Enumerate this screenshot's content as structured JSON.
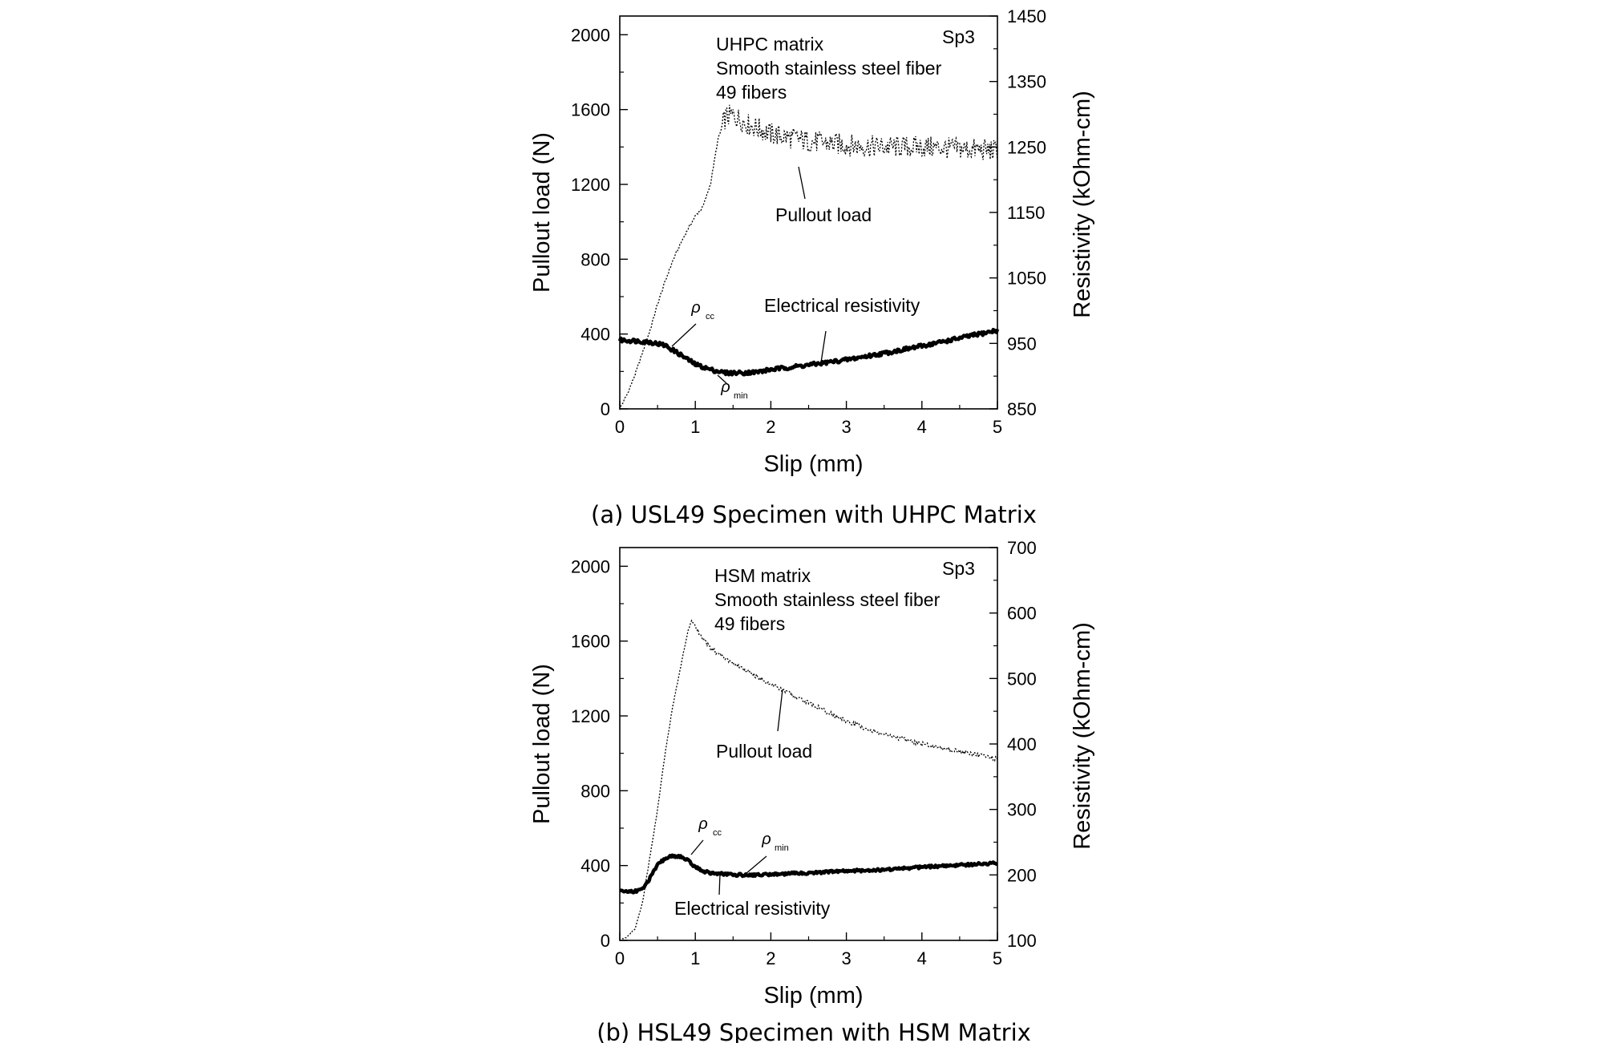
{
  "chart_data": [
    {
      "id": "a",
      "type": "line",
      "caption": "(a) USL49 Specimen with UHPC Matrix",
      "xlabel": "Slip (mm)",
      "ylabel": "Pullout load (N)",
      "y2label": "Resistivity (kOhm-cm)",
      "xlim": [
        0,
        5
      ],
      "ylim": [
        0,
        2100
      ],
      "y2lim": [
        850,
        1450
      ],
      "xticks": [
        "0",
        "1",
        "2",
        "3",
        "4",
        "5"
      ],
      "yticks": [
        "0",
        "400",
        "800",
        "1200",
        "1600",
        "2000"
      ],
      "y2ticks": [
        "850",
        "950",
        "1050",
        "1150",
        "1250",
        "1350",
        "1450"
      ],
      "legend_lines": [
        "UHPC matrix",
        "Smooth stainless steel fiber",
        "49 fibers"
      ],
      "specimen_tag": "Sp3",
      "annotations": {
        "pullout": "Pullout load",
        "resistivity": "Electrical resistivity",
        "rho_cc": "ρ",
        "rho_cc_sub": "cc",
        "rho_min": "ρ",
        "rho_min_sub": "min"
      },
      "series": [
        {
          "name": "Pullout load",
          "axis": "left",
          "style": "dotted",
          "x": [
            0,
            0.1,
            0.2,
            0.3,
            0.4,
            0.5,
            0.6,
            0.7,
            0.8,
            0.9,
            1.0,
            1.1,
            1.2,
            1.3,
            1.4,
            1.5,
            1.7,
            2.0,
            2.5,
            3.0,
            3.5,
            4.0,
            4.5,
            5.0
          ],
          "y": [
            0,
            80,
            180,
            300,
            420,
            560,
            680,
            790,
            880,
            960,
            1030,
            1080,
            1200,
            1440,
            1560,
            1570,
            1520,
            1470,
            1430,
            1410,
            1400,
            1400,
            1390,
            1380
          ],
          "noise": 60
        },
        {
          "name": "Electrical resistivity",
          "axis": "right",
          "style": "thick",
          "x": [
            0,
            0.2,
            0.4,
            0.6,
            0.8,
            1.0,
            1.2,
            1.4,
            1.6,
            1.8,
            2.0,
            2.5,
            3.0,
            3.5,
            4.0,
            4.5,
            5.0
          ],
          "y": [
            955,
            954,
            952,
            947,
            933,
            918,
            910,
            905,
            905,
            906,
            910,
            917,
            925,
            935,
            946,
            958,
            970
          ],
          "noise": 3
        }
      ]
    },
    {
      "id": "b",
      "type": "line",
      "caption": "(b) HSL49 Specimen with HSM Matrix",
      "xlabel": "Slip (mm)",
      "ylabel": "Pullout load (N)",
      "y2label": "Resistivity (kOhm-cm)",
      "xlim": [
        0,
        5
      ],
      "ylim": [
        0,
        2100
      ],
      "y2lim": [
        100,
        700
      ],
      "xticks": [
        "0",
        "1",
        "2",
        "3",
        "4",
        "5"
      ],
      "yticks": [
        "0",
        "400",
        "800",
        "1200",
        "1600",
        "2000"
      ],
      "y2ticks": [
        "100",
        "200",
        "300",
        "400",
        "500",
        "600",
        "700"
      ],
      "legend_lines": [
        "HSM matrix",
        "Smooth stainless steel fiber",
        "49 fibers"
      ],
      "specimen_tag": "Sp3",
      "annotations": {
        "pullout": "Pullout load",
        "resistivity": "Electrical resistivity",
        "rho_cc": "ρ",
        "rho_cc_sub": "cc",
        "rho_min": "ρ",
        "rho_min_sub": "min"
      },
      "series": [
        {
          "name": "Pullout load",
          "axis": "left",
          "style": "dotted",
          "x": [
            0,
            0.1,
            0.2,
            0.3,
            0.4,
            0.5,
            0.6,
            0.7,
            0.8,
            0.9,
            0.95,
            1.0,
            1.1,
            1.2,
            1.5,
            2.0,
            2.5,
            3.0,
            3.5,
            4.0,
            4.5,
            5.0
          ],
          "y": [
            0,
            20,
            60,
            200,
            450,
            700,
            1000,
            1250,
            1450,
            1650,
            1710,
            1680,
            1610,
            1560,
            1480,
            1370,
            1270,
            1170,
            1100,
            1050,
            1010,
            970
          ],
          "noise": 12
        },
        {
          "name": "Electrical resistivity",
          "axis": "right",
          "style": "thick",
          "x": [
            0,
            0.2,
            0.3,
            0.4,
            0.5,
            0.6,
            0.7,
            0.8,
            0.9,
            1.0,
            1.1,
            1.2,
            1.4,
            1.6,
            1.8,
            2.0,
            2.5,
            3.0,
            3.5,
            4.0,
            4.5,
            5.0
          ],
          "y": [
            175,
            175,
            178,
            195,
            215,
            225,
            229,
            228,
            222,
            212,
            206,
            203,
            201,
            200,
            200,
            201,
            203,
            206,
            208,
            212,
            215,
            218
          ],
          "noise": 2
        }
      ]
    }
  ]
}
